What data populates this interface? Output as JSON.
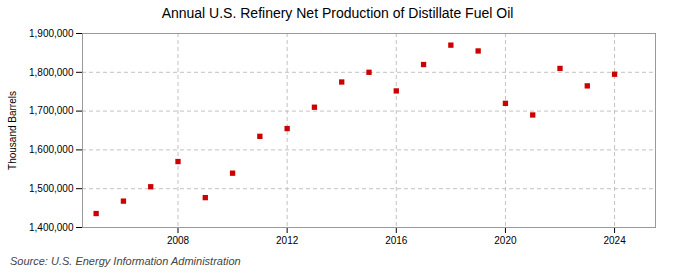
{
  "chart_data": {
    "type": "scatter",
    "title": "Annual U.S. Refinery Net Production of Distillate Fuel Oil",
    "ylabel": "Thousand Barrels",
    "source": "Source: U.S. Energy Information Administration",
    "x": [
      2005,
      2006,
      2007,
      2008,
      2009,
      2010,
      2011,
      2012,
      2013,
      2014,
      2015,
      2016,
      2017,
      2018,
      2019,
      2020,
      2021,
      2022,
      2023,
      2024
    ],
    "values": [
      1436000,
      1468000,
      1505000,
      1570000,
      1477000,
      1540000,
      1635000,
      1655000,
      1710000,
      1775000,
      1800000,
      1752000,
      1820000,
      1870000,
      1855000,
      1720000,
      1690000,
      1810000,
      1765000,
      1795000
    ],
    "color": "#cc0000",
    "marker": "square",
    "xlim": [
      2004.5,
      2025.5
    ],
    "xticks": [
      2008,
      2012,
      2016,
      2020,
      2024
    ],
    "ylim": [
      1400000,
      1900000
    ],
    "yticks": [
      {
        "value": 1400000,
        "label": "1,400,000"
      },
      {
        "value": 1500000,
        "label": "1,500,000"
      },
      {
        "value": 1600000,
        "label": "1,600,000"
      },
      {
        "value": 1700000,
        "label": "1,700,000"
      },
      {
        "value": 1800000,
        "label": "1,800,000"
      },
      {
        "value": 1900000,
        "label": "1,900,000"
      }
    ],
    "grid": true
  }
}
